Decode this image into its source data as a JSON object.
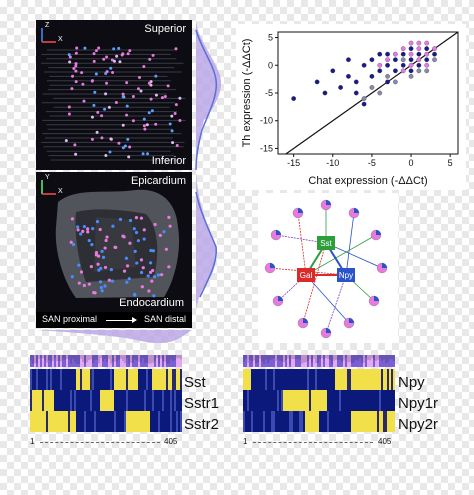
{
  "panel_a": {
    "top_label": "Superior",
    "bottom_label": "Inferior",
    "axis_z": "Z",
    "axis_x": "X"
  },
  "panel_b": {
    "top_label": "Epicardium",
    "bottom_label": "Endocardium",
    "axis_y": "Y",
    "axis_x": "X",
    "footer_left": "SAN proximal",
    "footer_right": "SAN distal"
  },
  "chart_data": {
    "type": "scatter",
    "xlabel": "Chat expression (-ΔΔCt)",
    "ylabel": "Th expression (-ΔΔCt)",
    "xlim": [
      -17,
      6
    ],
    "ylim": [
      -16,
      6
    ],
    "xticks": [
      -15,
      -10,
      -5,
      0,
      5
    ],
    "yticks": [
      -15,
      -10,
      -5,
      0,
      5
    ],
    "diagonal": true,
    "series": [
      {
        "color": "#1a1a8c",
        "points": [
          [
            -15,
            -6
          ],
          [
            -12,
            -3
          ],
          [
            -10,
            -1
          ],
          [
            -9,
            -4
          ],
          [
            -8,
            -2
          ],
          [
            -7,
            -3
          ],
          [
            -6,
            0
          ],
          [
            -5,
            -2
          ],
          [
            -5,
            1
          ],
          [
            -4,
            -1
          ],
          [
            -4,
            2
          ],
          [
            -3,
            0
          ],
          [
            -3,
            -3
          ],
          [
            -2,
            1
          ],
          [
            -2,
            -1
          ],
          [
            -1,
            2
          ],
          [
            -1,
            0
          ],
          [
            0,
            3
          ],
          [
            0,
            1
          ],
          [
            0,
            -1
          ],
          [
            1,
            2
          ],
          [
            1,
            0
          ],
          [
            2,
            3
          ],
          [
            2,
            1
          ],
          [
            -11,
            -5
          ],
          [
            -7,
            -5
          ],
          [
            -6,
            -7
          ],
          [
            -3,
            2
          ],
          [
            3,
            2
          ],
          [
            -8,
            1
          ]
        ]
      },
      {
        "color": "#e87adf",
        "points": [
          [
            -1,
            3
          ],
          [
            0,
            2
          ],
          [
            1,
            1
          ],
          [
            1,
            3
          ],
          [
            2,
            2
          ],
          [
            -2,
            2
          ],
          [
            0,
            0
          ],
          [
            3,
            3
          ],
          [
            -1,
            -1
          ],
          [
            2,
            0
          ],
          [
            -3,
            1
          ],
          [
            1,
            4
          ],
          [
            -4,
            0
          ],
          [
            0,
            4
          ],
          [
            2,
            4
          ]
        ]
      },
      {
        "color": "#8a8aa8",
        "points": [
          [
            -6,
            -6
          ],
          [
            -5,
            -4
          ],
          [
            -3,
            -2
          ],
          [
            -2,
            -3
          ],
          [
            0,
            -2
          ],
          [
            1,
            -1
          ],
          [
            -1,
            1
          ],
          [
            3,
            1
          ],
          [
            -4,
            -5
          ],
          [
            2,
            -1
          ]
        ]
      }
    ]
  },
  "network": {
    "nodes": [
      {
        "label": "Sst",
        "color": "#2e9e3a"
      },
      {
        "label": "Gal",
        "color": "#d92b2b"
      },
      {
        "label": "Npy",
        "color": "#2a52c9"
      }
    ]
  },
  "heatmap_left": {
    "genes": [
      "Sst",
      "Sstr1",
      "Sstr2"
    ],
    "start": "1",
    "end": "405"
  },
  "heatmap_right": {
    "genes": [
      "Npy",
      "Npy1r",
      "Npy2r"
    ],
    "start": "1",
    "end": "405"
  }
}
